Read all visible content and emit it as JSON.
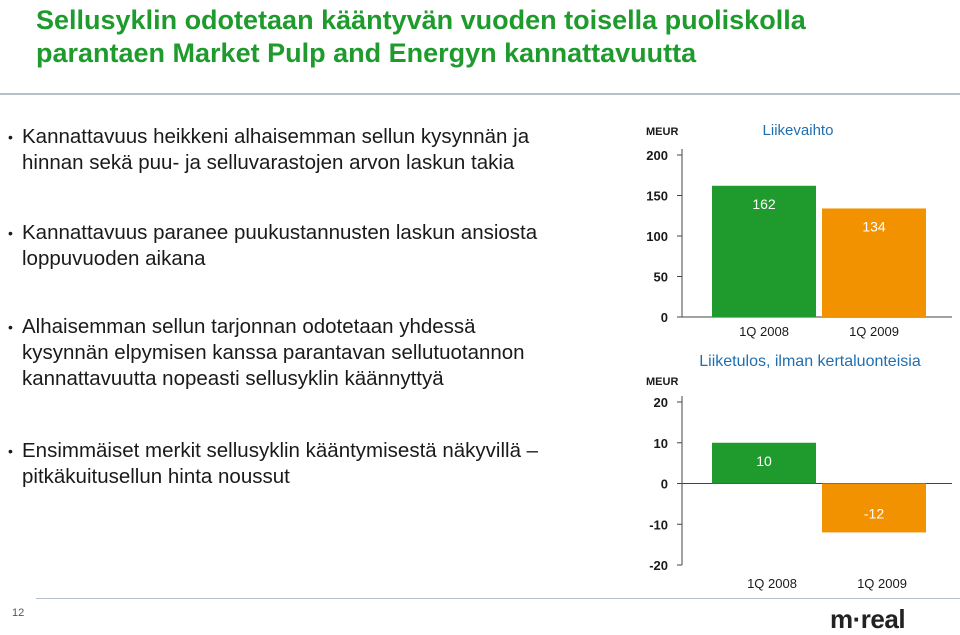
{
  "slide": {
    "title_line1": "Sellusyklin odotetaan kääntyvän vuoden toisella puoliskolla",
    "title_line2": "parantaen Market Pulp and Energyn kannattavuutta",
    "page_number": "12",
    "logo_text": "m-real",
    "bullets": [
      [
        "Kannattavuus heikkeni alhaisemman sellun kysynnän ja",
        "hinnan sekä puu- ja selluvarastojen arvon laskun takia"
      ],
      [
        "Kannattavuus paranee puukustannusten laskun ansiosta",
        "loppuvuoden aikana"
      ],
      [
        "Alhaisemman sellun tarjonnan odotetaan yhdessä",
        "kysynnän elpymisen kanssa parantavan sellutuotannon",
        "kannattavuutta nopeasti sellusyklin käännyttyä"
      ],
      [
        "Ensimmäiset merkit sellusyklin kääntymisestä näkyvillä –",
        "pitkäkuitusellun hinta noussut"
      ]
    ],
    "bullet_symbol": "•"
  },
  "chart_data": [
    {
      "type": "bar",
      "title": "Liikevaihto",
      "ylabel": "MEUR",
      "categories": [
        "1Q 2008",
        "1Q 2009"
      ],
      "values": [
        162,
        134
      ],
      "data_labels": [
        "162",
        "134"
      ],
      "yticks": [
        0,
        50,
        100,
        150,
        200
      ],
      "ytick_labels": [
        "0",
        "50",
        "100",
        "150",
        "200"
      ],
      "ylim": [
        0,
        200
      ],
      "colors": [
        "#1f9b2e",
        "#f39200"
      ],
      "grid": false
    },
    {
      "type": "bar",
      "title": "Liiketulos, ilman kertaluonteisia",
      "ylabel": "MEUR",
      "categories": [
        "1Q 2008",
        "1Q 2009"
      ],
      "values": [
        10,
        -12
      ],
      "data_labels": [
        "10",
        "-12"
      ],
      "yticks": [
        -20,
        -10,
        0,
        10,
        20
      ],
      "ytick_labels": [
        "-20",
        "-10",
        "0",
        "10",
        "20"
      ],
      "ylim": [
        -20,
        20
      ],
      "colors": [
        "#1f9b2e",
        "#f39200"
      ],
      "grid": false
    }
  ]
}
